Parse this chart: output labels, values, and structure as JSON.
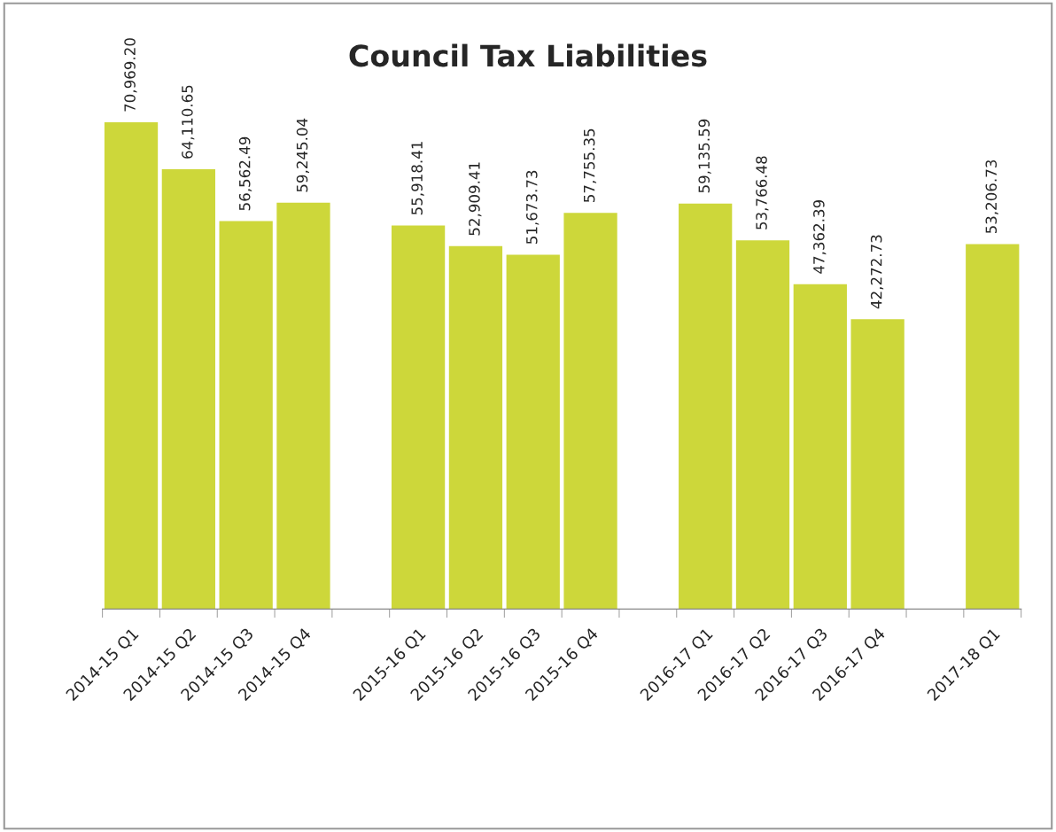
{
  "chart_data": {
    "type": "bar",
    "title": "Council Tax Liabilities",
    "categories": [
      "2014-15 Q1",
      "2014-15 Q2",
      "2014-15 Q3",
      "2014-15 Q4",
      null,
      "2015-16 Q1",
      "2015-16 Q2",
      "2015-16 Q3",
      "2015-16 Q4",
      null,
      "2016-17 Q1",
      "2016-17 Q2",
      "2016-17 Q3",
      "2016-17 Q4",
      null,
      "2017-18 Q1"
    ],
    "values": [
      70969.2,
      64110.65,
      56562.49,
      59245.04,
      null,
      55918.41,
      52909.41,
      51673.73,
      57755.35,
      null,
      59135.59,
      53766.48,
      47362.39,
      42272.73,
      null,
      53206.73
    ],
    "value_labels": [
      "70,969.20",
      "64,110.65",
      "56,562.49",
      "59,245.04",
      null,
      "55,918.41",
      "52,909.41",
      "51,673.73",
      "57,755.35",
      null,
      "59,135.59",
      "53,766.48",
      "47,362.39",
      "42,272.73",
      null,
      "53,206.73"
    ],
    "color": "#cdd73a",
    "tick_labels": "x"
  }
}
